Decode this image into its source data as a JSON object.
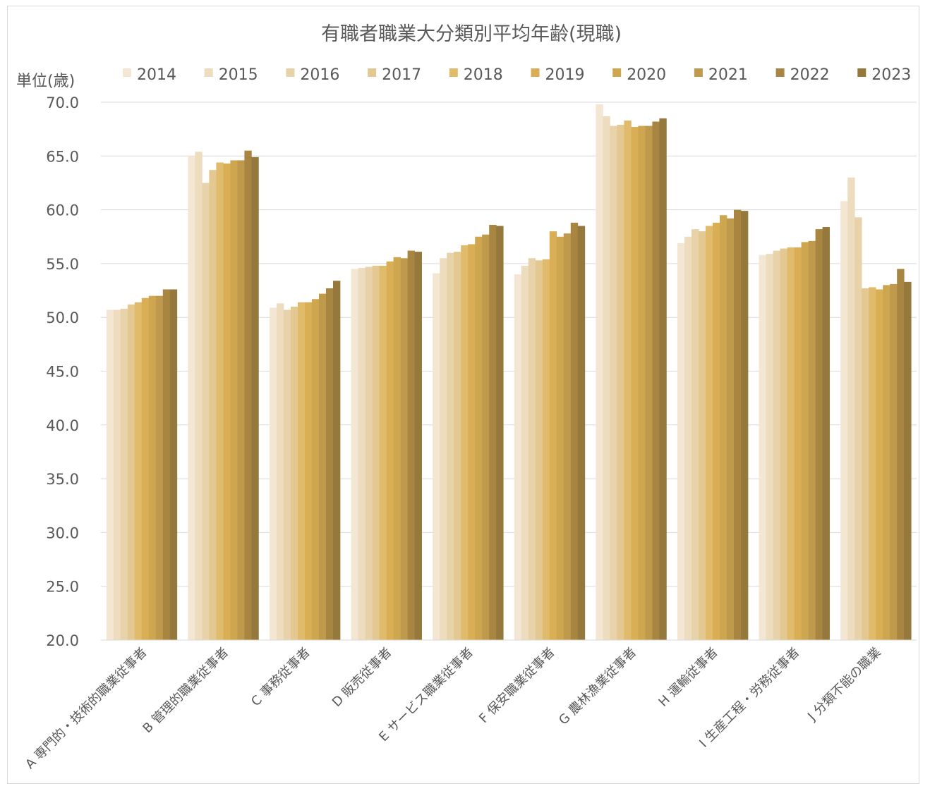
{
  "chart_data": {
    "type": "bar",
    "title": "有職者職業大分類別平均年齢(現職)",
    "unit_label": "単位(歳)",
    "xlabel": "",
    "ylabel": "",
    "ylim": [
      20,
      70
    ],
    "yticks": [
      "20.0",
      "25.0",
      "30.0",
      "35.0",
      "40.0",
      "45.0",
      "50.0",
      "55.0",
      "60.0",
      "65.0",
      "70.0"
    ],
    "grid": true,
    "legend_position": "top",
    "categories": [
      "A 専門的・技術的職業従事者",
      "B 管理的職業従事者",
      "C 事務従事者",
      "D 販売従事者",
      "E サービス職業従事者",
      "F 保安職業従事者",
      "G 農林漁業従事者",
      "H 運輸従事者",
      "I 生産工程・労務従事者",
      "J 分類不能の職業"
    ],
    "series": [
      {
        "name": "2014",
        "color": "#f3e6d2",
        "values": [
          50.7,
          65.0,
          50.9,
          54.5,
          54.1,
          54.0,
          69.8,
          56.9,
          55.8,
          60.8
        ]
      },
      {
        "name": "2015",
        "color": "#eddcbd",
        "values": [
          50.7,
          65.4,
          51.3,
          54.6,
          55.5,
          54.8,
          68.7,
          57.5,
          55.9,
          63.0
        ]
      },
      {
        "name": "2016",
        "color": "#e8d2aa",
        "values": [
          50.8,
          62.5,
          50.7,
          54.7,
          56.0,
          55.5,
          67.8,
          58.2,
          56.2,
          59.3
        ]
      },
      {
        "name": "2017",
        "color": "#e4c891",
        "values": [
          51.2,
          63.7,
          51.0,
          54.8,
          56.1,
          55.3,
          67.9,
          58.0,
          56.4,
          52.7
        ]
      },
      {
        "name": "2018",
        "color": "#e0bb6c",
        "values": [
          51.4,
          64.4,
          51.4,
          54.8,
          56.7,
          55.4,
          68.3,
          58.5,
          56.5,
          52.8
        ]
      },
      {
        "name": "2019",
        "color": "#d9ae54",
        "values": [
          51.8,
          64.3,
          51.4,
          55.2,
          56.8,
          58.0,
          67.7,
          58.8,
          56.5,
          52.6
        ]
      },
      {
        "name": "2020",
        "color": "#cfa650",
        "values": [
          52.0,
          64.6,
          51.7,
          55.6,
          57.5,
          57.5,
          67.8,
          59.5,
          57.0,
          53.0
        ]
      },
      {
        "name": "2021",
        "color": "#bf9a4c",
        "values": [
          52.0,
          64.6,
          52.2,
          55.5,
          57.7,
          57.8,
          67.8,
          59.2,
          57.1,
          53.1
        ]
      },
      {
        "name": "2022",
        "color": "#a88642",
        "values": [
          52.6,
          65.5,
          52.7,
          56.2,
          58.6,
          58.8,
          68.2,
          60.0,
          58.2,
          54.5
        ]
      },
      {
        "name": "2023",
        "color": "#95783c",
        "values": [
          52.6,
          64.9,
          53.4,
          56.1,
          58.5,
          58.5,
          68.5,
          59.9,
          58.4,
          53.3
        ]
      }
    ]
  }
}
